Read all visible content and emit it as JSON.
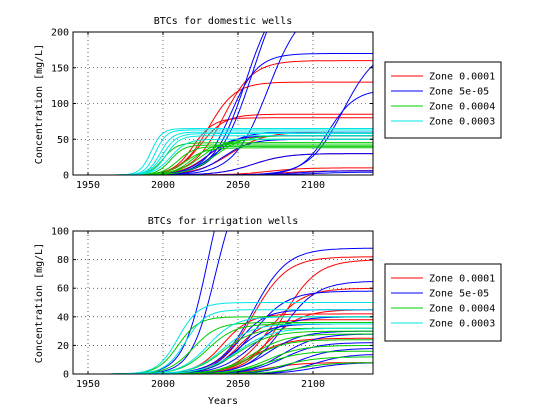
{
  "chart_data": [
    {
      "type": "line",
      "title": "BTCs for domestic wells",
      "xlabel": "",
      "ylabel": "Concentration [mg/L]",
      "xlim": [
        1940,
        2140
      ],
      "ylim": [
        0,
        200
      ],
      "xticks": [
        "1950",
        "2000",
        "2050",
        "2100"
      ],
      "yticks": [
        "0",
        "50",
        "100",
        "150",
        "200"
      ],
      "grid": true,
      "legend_position": "right",
      "series": [
        {
          "name": "Zone 0.0001",
          "color": "#ff0000",
          "curves": [
            {
              "start": 1965,
              "mid": 2040,
              "width": 22,
              "max": 160
            },
            {
              "start": 1970,
              "mid": 2030,
              "width": 20,
              "max": 130
            },
            {
              "start": 1965,
              "mid": 2025,
              "width": 18,
              "max": 85
            },
            {
              "start": 1965,
              "mid": 2020,
              "width": 15,
              "max": 80
            },
            {
              "start": 1970,
              "mid": 2045,
              "width": 25,
              "max": 60
            },
            {
              "start": 1970,
              "mid": 2030,
              "width": 20,
              "max": 55
            },
            {
              "start": 1975,
              "mid": 2060,
              "width": 25,
              "max": 30
            },
            {
              "start": 1980,
              "mid": 2070,
              "width": 25,
              "max": 10
            },
            {
              "start": 1990,
              "mid": 2080,
              "width": 25,
              "max": 6
            }
          ]
        },
        {
          "name": "Zone 5e-05",
          "color": "#0000ff",
          "curves": [
            {
              "start": 1975,
              "mid": 2060,
              "width": 25,
              "max": 290
            },
            {
              "start": 1975,
              "mid": 2055,
              "width": 23,
              "max": 260
            },
            {
              "start": 1975,
              "mid": 2070,
              "width": 25,
              "max": 240
            },
            {
              "start": 1970,
              "mid": 2045,
              "width": 20,
              "max": 170
            },
            {
              "start": 1980,
              "mid": 2120,
              "width": 25,
              "max": 180
            },
            {
              "start": 1980,
              "mid": 2110,
              "width": 20,
              "max": 120
            },
            {
              "start": 1970,
              "mid": 2035,
              "width": 20,
              "max": 60
            },
            {
              "start": 1970,
              "mid": 2030,
              "width": 18,
              "max": 55
            },
            {
              "start": 1970,
              "mid": 2040,
              "width": 20,
              "max": 50
            },
            {
              "start": 1980,
              "mid": 2060,
              "width": 25,
              "max": 30
            },
            {
              "start": 1990,
              "mid": 2090,
              "width": 25,
              "max": 6
            },
            {
              "start": 1990,
              "mid": 2100,
              "width": 25,
              "max": 4
            }
          ]
        },
        {
          "name": "Zone 0.0004",
          "color": "#00cc00",
          "curves": [
            {
              "start": 1965,
              "mid": 2005,
              "width": 10,
              "max": 42
            },
            {
              "start": 1965,
              "mid": 2000,
              "width": 10,
              "max": 45
            },
            {
              "start": 1965,
              "mid": 2010,
              "width": 12,
              "max": 40
            },
            {
              "start": 1965,
              "mid": 2015,
              "width": 15,
              "max": 38
            },
            {
              "start": 1970,
              "mid": 2020,
              "width": 15,
              "max": 45
            },
            {
              "start": 1970,
              "mid": 2025,
              "width": 18,
              "max": 50
            },
            {
              "start": 1970,
              "mid": 2035,
              "width": 20,
              "max": 55
            }
          ]
        },
        {
          "name": "Zone 0.0003",
          "color": "#00e5e5",
          "curves": [
            {
              "start": 1960,
              "mid": 1992,
              "width": 8,
              "max": 65
            },
            {
              "start": 1960,
              "mid": 1995,
              "width": 8,
              "max": 63
            },
            {
              "start": 1960,
              "mid": 1998,
              "width": 9,
              "max": 60
            },
            {
              "start": 1960,
              "mid": 2000,
              "width": 10,
              "max": 58
            },
            {
              "start": 1960,
              "mid": 2002,
              "width": 10,
              "max": 55
            },
            {
              "start": 1960,
              "mid": 2005,
              "width": 12,
              "max": 50
            }
          ]
        }
      ]
    },
    {
      "type": "line",
      "title": "BTCs for irrigation wells",
      "xlabel": "Years",
      "ylabel": "Concentration [mg/L]",
      "xlim": [
        1940,
        2140
      ],
      "ylim": [
        0,
        100
      ],
      "xticks": [
        "1950",
        "2000",
        "2050",
        "2100"
      ],
      "yticks": [
        "0",
        "20",
        "40",
        "60",
        "80",
        "100"
      ],
      "grid": true,
      "legend_position": "right",
      "series": [
        {
          "name": "Zone 0.0001",
          "color": "#ff0000",
          "curves": [
            {
              "start": 1965,
              "mid": 2060,
              "width": 25,
              "max": 82
            },
            {
              "start": 1970,
              "mid": 2080,
              "width": 25,
              "max": 80
            },
            {
              "start": 1970,
              "mid": 2040,
              "width": 20,
              "max": 42
            },
            {
              "start": 1975,
              "mid": 2070,
              "width": 25,
              "max": 60
            },
            {
              "start": 1975,
              "mid": 2070,
              "width": 25,
              "max": 45
            },
            {
              "start": 1975,
              "mid": 2050,
              "width": 20,
              "max": 38
            },
            {
              "start": 1980,
              "mid": 2060,
              "width": 25,
              "max": 25
            },
            {
              "start": 1985,
              "mid": 2070,
              "width": 25,
              "max": 8
            }
          ]
        },
        {
          "name": "Zone 5e-05",
          "color": "#0000ff",
          "curves": [
            {
              "start": 1960,
              "mid": 2030,
              "width": 18,
              "max": 160
            },
            {
              "start": 1960,
              "mid": 2035,
              "width": 18,
              "max": 140
            },
            {
              "start": 1965,
              "mid": 2060,
              "width": 25,
              "max": 88
            },
            {
              "start": 1970,
              "mid": 2080,
              "width": 25,
              "max": 65
            },
            {
              "start": 1970,
              "mid": 2060,
              "width": 25,
              "max": 58
            },
            {
              "start": 1965,
              "mid": 2050,
              "width": 20,
              "max": 45
            },
            {
              "start": 1970,
              "mid": 2060,
              "width": 25,
              "max": 40
            },
            {
              "start": 1970,
              "mid": 2050,
              "width": 22,
              "max": 35
            },
            {
              "start": 1975,
              "mid": 2070,
              "width": 25,
              "max": 30
            },
            {
              "start": 1975,
              "mid": 2080,
              "width": 25,
              "max": 28
            },
            {
              "start": 1980,
              "mid": 2080,
              "width": 25,
              "max": 22
            },
            {
              "start": 1980,
              "mid": 2090,
              "width": 25,
              "max": 18
            },
            {
              "start": 1985,
              "mid": 2100,
              "width": 25,
              "max": 14
            },
            {
              "start": 1990,
              "mid": 2100,
              "width": 25,
              "max": 8
            }
          ]
        },
        {
          "name": "Zone 0.0004",
          "color": "#00cc00",
          "curves": [
            {
              "start": 1960,
              "mid": 2010,
              "width": 15,
              "max": 40
            },
            {
              "start": 1960,
              "mid": 2020,
              "width": 18,
              "max": 36
            },
            {
              "start": 1965,
              "mid": 2030,
              "width": 20,
              "max": 35
            },
            {
              "start": 1965,
              "mid": 2040,
              "width": 22,
              "max": 32
            },
            {
              "start": 1970,
              "mid": 2050,
              "width": 25,
              "max": 30
            },
            {
              "start": 1970,
              "mid": 2060,
              "width": 25,
              "max": 28
            },
            {
              "start": 1975,
              "mid": 2060,
              "width": 25,
              "max": 24
            },
            {
              "start": 1975,
              "mid": 2070,
              "width": 25,
              "max": 20
            },
            {
              "start": 1980,
              "mid": 2070,
              "width": 25,
              "max": 16
            },
            {
              "start": 1980,
              "mid": 2080,
              "width": 25,
              "max": 12
            },
            {
              "start": 1985,
              "mid": 2090,
              "width": 25,
              "max": 8
            }
          ]
        },
        {
          "name": "Zone 0.0003",
          "color": "#00e5e5",
          "curves": [
            {
              "start": 1960,
              "mid": 2010,
              "width": 15,
              "max": 50
            },
            {
              "start": 1960,
              "mid": 2015,
              "width": 15,
              "max": 45
            },
            {
              "start": 1965,
              "mid": 2030,
              "width": 20,
              "max": 40
            },
            {
              "start": 1965,
              "mid": 2040,
              "width": 22,
              "max": 35
            },
            {
              "start": 1970,
              "mid": 2050,
              "width": 25,
              "max": 32
            }
          ]
        }
      ]
    }
  ]
}
